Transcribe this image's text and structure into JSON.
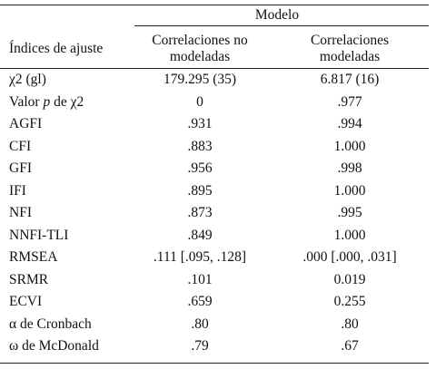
{
  "table": {
    "group_header": "Modelo",
    "columns": [
      "Índices de ajuste",
      "Correlaciones no modeladas",
      "Correlaciones modeladas"
    ],
    "rows": [
      [
        [
          "χ2 (gl)"
        ],
        "179.295 (35)",
        "6.817 (16)"
      ],
      [
        [
          "Valor ",
          "p",
          " de χ2"
        ],
        "0",
        ".977"
      ],
      [
        [
          "AGFI"
        ],
        ".931",
        ".994"
      ],
      [
        [
          "CFI"
        ],
        ".883",
        "1.000"
      ],
      [
        [
          "GFI"
        ],
        ".956",
        ".998"
      ],
      [
        [
          "IFI"
        ],
        ".895",
        "1.000"
      ],
      [
        [
          "NFI"
        ],
        ".873",
        ".995"
      ],
      [
        [
          "NNFI-TLI"
        ],
        ".849",
        "1.000"
      ],
      [
        [
          "RMSEA"
        ],
        ".111 [.095, .128]",
        ".000 [.000, .031]"
      ],
      [
        [
          "SRMR"
        ],
        ".101",
        "0.019"
      ],
      [
        [
          "ECVI"
        ],
        ".659",
        "0.255"
      ],
      [
        [
          "α de Cronbach"
        ],
        ".80",
        ".80"
      ],
      [
        [
          "ω de McDonald"
        ],
        ".79",
        ".67"
      ]
    ]
  }
}
